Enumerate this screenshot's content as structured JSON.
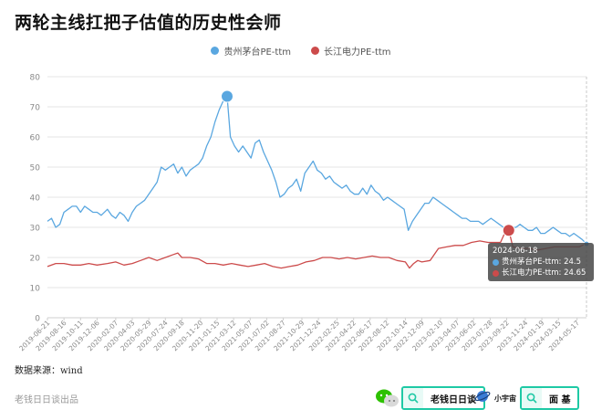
{
  "title": "两轮主线扛把子估值的历史性会师",
  "source": "数据来源：wind",
  "footer_left": "老钱日日谈出品",
  "footer_badges": {
    "wechat_search": "老钱日日谈",
    "app_name": "小宇宙",
    "app_search": "面 基"
  },
  "colors": {
    "moutai": "#5aa7e0",
    "cypc": "#cc4b4b",
    "grid": "#e6e6e6",
    "axis_text": "#8a8a8a"
  },
  "tooltip": {
    "date": "2024-06-18",
    "line1": "贵州茅台PE-ttm: 24.5",
    "line2": "长江电力PE-ttm: 24.65"
  },
  "chart_data": {
    "type": "line",
    "title": "两轮主线扛把子估值的历史性会师",
    "xlabel": "",
    "ylabel": "",
    "ylim": [
      0,
      80
    ],
    "yticks": [
      0,
      10,
      20,
      30,
      40,
      50,
      60,
      70,
      80
    ],
    "grid": true,
    "legend_position": "top-center",
    "x_tick_labels": [
      "2019-06-21",
      "2019-08-16",
      "2019-10-11",
      "2019-12-06",
      "2020-02-07",
      "2020-04-03",
      "2020-05-29",
      "2020-07-24",
      "2020-09-18",
      "2020-11-20",
      "2021-01-15",
      "2021-03-12",
      "2021-05-07",
      "2021-07-02",
      "2021-08-27",
      "2021-10-29",
      "2021-12-24",
      "2022-02-25",
      "2022-04-22",
      "2022-06-17",
      "2022-08-12",
      "2022-10-14",
      "2022-12-09",
      "2023-02-10",
      "2023-04-07",
      "2023-06-02",
      "2023-07-28",
      "2023-09-22",
      "2023-11-24",
      "2024-01-19",
      "2024-03-15",
      "2024-05-17"
    ],
    "series": [
      {
        "name": "贵州茅台PE-ttm",
        "color": "#5aa7e0",
        "points": [
          [
            "2019-06-21",
            32
          ],
          [
            "2019-07-05",
            33
          ],
          [
            "2019-07-19",
            30
          ],
          [
            "2019-08-02",
            31
          ],
          [
            "2019-08-16",
            35
          ],
          [
            "2019-08-30",
            36
          ],
          [
            "2019-09-13",
            37
          ],
          [
            "2019-09-27",
            37
          ],
          [
            "2019-10-11",
            35
          ],
          [
            "2019-10-25",
            37
          ],
          [
            "2019-11-08",
            36
          ],
          [
            "2019-11-22",
            35
          ],
          [
            "2019-12-06",
            35
          ],
          [
            "2019-12-20",
            34
          ],
          [
            "2020-01-10",
            36
          ],
          [
            "2020-01-24",
            34
          ],
          [
            "2020-02-07",
            33
          ],
          [
            "2020-02-21",
            35
          ],
          [
            "2020-03-06",
            34
          ],
          [
            "2020-03-20",
            32
          ],
          [
            "2020-04-03",
            35
          ],
          [
            "2020-04-17",
            37
          ],
          [
            "2020-05-01",
            38
          ],
          [
            "2020-05-15",
            39
          ],
          [
            "2020-05-29",
            41
          ],
          [
            "2020-06-12",
            43
          ],
          [
            "2020-06-26",
            45
          ],
          [
            "2020-07-10",
            50
          ],
          [
            "2020-07-24",
            49
          ],
          [
            "2020-08-07",
            50
          ],
          [
            "2020-08-21",
            51
          ],
          [
            "2020-09-04",
            48
          ],
          [
            "2020-09-18",
            50
          ],
          [
            "2020-10-02",
            47
          ],
          [
            "2020-10-16",
            49
          ],
          [
            "2020-10-30",
            50
          ],
          [
            "2020-11-13",
            51
          ],
          [
            "2020-11-27",
            53
          ],
          [
            "2020-12-11",
            57
          ],
          [
            "2020-12-25",
            60
          ],
          [
            "2021-01-08",
            65
          ],
          [
            "2021-01-22",
            69
          ],
          [
            "2021-02-05",
            72
          ],
          [
            "2021-02-18",
            73.5
          ],
          [
            "2021-03-01",
            60
          ],
          [
            "2021-03-15",
            57
          ],
          [
            "2021-03-29",
            55
          ],
          [
            "2021-04-12",
            57
          ],
          [
            "2021-04-26",
            55
          ],
          [
            "2021-05-10",
            53
          ],
          [
            "2021-05-24",
            58
          ],
          [
            "2021-06-07",
            59
          ],
          [
            "2021-06-21",
            55
          ],
          [
            "2021-07-05",
            52
          ],
          [
            "2021-07-19",
            49
          ],
          [
            "2021-08-02",
            45
          ],
          [
            "2021-08-16",
            40
          ],
          [
            "2021-08-30",
            41
          ],
          [
            "2021-09-13",
            43
          ],
          [
            "2021-09-27",
            44
          ],
          [
            "2021-10-11",
            46
          ],
          [
            "2021-10-25",
            42
          ],
          [
            "2021-11-08",
            48
          ],
          [
            "2021-11-22",
            50
          ],
          [
            "2021-12-06",
            52
          ],
          [
            "2021-12-20",
            49
          ],
          [
            "2022-01-03",
            48
          ],
          [
            "2022-01-17",
            46
          ],
          [
            "2022-01-31",
            47
          ],
          [
            "2022-02-14",
            45
          ],
          [
            "2022-02-28",
            44
          ],
          [
            "2022-03-14",
            43
          ],
          [
            "2022-03-28",
            44
          ],
          [
            "2022-04-11",
            42
          ],
          [
            "2022-04-25",
            41
          ],
          [
            "2022-05-09",
            41
          ],
          [
            "2022-05-23",
            43
          ],
          [
            "2022-06-06",
            41
          ],
          [
            "2022-06-20",
            44
          ],
          [
            "2022-07-04",
            42
          ],
          [
            "2022-07-18",
            41
          ],
          [
            "2022-08-01",
            39
          ],
          [
            "2022-08-15",
            40
          ],
          [
            "2022-08-29",
            39
          ],
          [
            "2022-09-12",
            38
          ],
          [
            "2022-09-26",
            37
          ],
          [
            "2022-10-10",
            36
          ],
          [
            "2022-10-24",
            29
          ],
          [
            "2022-11-07",
            32
          ],
          [
            "2022-11-21",
            34
          ],
          [
            "2022-12-05",
            36
          ],
          [
            "2022-12-19",
            38
          ],
          [
            "2023-01-02",
            38
          ],
          [
            "2023-01-16",
            40
          ],
          [
            "2023-01-30",
            39
          ],
          [
            "2023-02-13",
            38
          ],
          [
            "2023-02-27",
            37
          ],
          [
            "2023-03-13",
            36
          ],
          [
            "2023-03-27",
            35
          ],
          [
            "2023-04-10",
            34
          ],
          [
            "2023-04-24",
            33
          ],
          [
            "2023-05-08",
            33
          ],
          [
            "2023-05-22",
            32
          ],
          [
            "2023-06-05",
            32
          ],
          [
            "2023-06-19",
            32
          ],
          [
            "2023-07-03",
            31
          ],
          [
            "2023-07-17",
            32
          ],
          [
            "2023-07-31",
            33
          ],
          [
            "2023-08-14",
            32
          ],
          [
            "2023-08-28",
            31
          ],
          [
            "2023-09-11",
            30
          ],
          [
            "2023-09-25",
            29
          ],
          [
            "2023-10-09",
            30
          ],
          [
            "2023-10-23",
            30
          ],
          [
            "2023-11-06",
            31
          ],
          [
            "2023-11-20",
            30
          ],
          [
            "2023-12-04",
            29
          ],
          [
            "2023-12-18",
            29
          ],
          [
            "2024-01-01",
            30
          ],
          [
            "2024-01-15",
            28
          ],
          [
            "2024-01-29",
            28
          ],
          [
            "2024-02-12",
            29
          ],
          [
            "2024-02-26",
            30
          ],
          [
            "2024-03-11",
            29
          ],
          [
            "2024-03-25",
            28
          ],
          [
            "2024-04-08",
            28
          ],
          [
            "2024-04-22",
            27
          ],
          [
            "2024-05-06",
            28
          ],
          [
            "2024-05-20",
            27
          ],
          [
            "2024-06-03",
            26
          ],
          [
            "2024-06-18",
            24.5
          ]
        ]
      },
      {
        "name": "长江电力PE-ttm",
        "color": "#cc4b4b",
        "points": [
          [
            "2019-06-21",
            17
          ],
          [
            "2019-07-19",
            18
          ],
          [
            "2019-08-16",
            18
          ],
          [
            "2019-09-13",
            17.5
          ],
          [
            "2019-10-11",
            17.5
          ],
          [
            "2019-11-08",
            18
          ],
          [
            "2019-12-06",
            17.5
          ],
          [
            "2020-01-10",
            18
          ],
          [
            "2020-02-07",
            18.5
          ],
          [
            "2020-03-06",
            17.5
          ],
          [
            "2020-04-03",
            18
          ],
          [
            "2020-05-01",
            19
          ],
          [
            "2020-05-29",
            20
          ],
          [
            "2020-06-26",
            19
          ],
          [
            "2020-07-24",
            20
          ],
          [
            "2020-08-21",
            21
          ],
          [
            "2020-09-04",
            21.5
          ],
          [
            "2020-09-18",
            20
          ],
          [
            "2020-10-16",
            20
          ],
          [
            "2020-11-13",
            19.5
          ],
          [
            "2020-12-11",
            18
          ],
          [
            "2021-01-08",
            18
          ],
          [
            "2021-02-05",
            17.5
          ],
          [
            "2021-03-05",
            18
          ],
          [
            "2021-04-02",
            17.5
          ],
          [
            "2021-04-30",
            17
          ],
          [
            "2021-05-28",
            17.5
          ],
          [
            "2021-06-25",
            18
          ],
          [
            "2021-07-23",
            17
          ],
          [
            "2021-08-20",
            16.5
          ],
          [
            "2021-09-17",
            17
          ],
          [
            "2021-10-15",
            17.5
          ],
          [
            "2021-11-12",
            18.5
          ],
          [
            "2021-12-10",
            19
          ],
          [
            "2022-01-07",
            20
          ],
          [
            "2022-02-04",
            20
          ],
          [
            "2022-03-04",
            19.5
          ],
          [
            "2022-04-01",
            20
          ],
          [
            "2022-04-29",
            19.5
          ],
          [
            "2022-05-27",
            20
          ],
          [
            "2022-06-24",
            20.5
          ],
          [
            "2022-07-22",
            20
          ],
          [
            "2022-08-19",
            20
          ],
          [
            "2022-09-16",
            19
          ],
          [
            "2022-10-14",
            18.5
          ],
          [
            "2022-10-28",
            16.5
          ],
          [
            "2022-11-11",
            18
          ],
          [
            "2022-11-25",
            19
          ],
          [
            "2022-12-09",
            18.5
          ],
          [
            "2023-01-06",
            19
          ],
          [
            "2023-02-03",
            23
          ],
          [
            "2023-03-03",
            23.5
          ],
          [
            "2023-03-31",
            24
          ],
          [
            "2023-04-28",
            24
          ],
          [
            "2023-05-26",
            25
          ],
          [
            "2023-06-23",
            25.5
          ],
          [
            "2023-07-21",
            25
          ],
          [
            "2023-08-18",
            25
          ],
          [
            "2023-09-01",
            25
          ],
          [
            "2023-09-15",
            28
          ],
          [
            "2023-09-29",
            29
          ],
          [
            "2023-10-13",
            23.5
          ],
          [
            "2023-11-10",
            23
          ],
          [
            "2023-12-08",
            23
          ],
          [
            "2024-01-05",
            22.5
          ],
          [
            "2024-02-02",
            23
          ],
          [
            "2024-03-01",
            23.5
          ],
          [
            "2024-03-29",
            23.5
          ],
          [
            "2024-04-26",
            23.5
          ],
          [
            "2024-05-24",
            23.5
          ],
          [
            "2024-06-18",
            24.65
          ]
        ]
      }
    ],
    "highlights": [
      {
        "series": 0,
        "x": "2021-02-18",
        "y": 73.5
      },
      {
        "series": 0,
        "x": "2024-06-18",
        "y": 24.5
      },
      {
        "series": 1,
        "x": "2023-09-29",
        "y": 29
      }
    ]
  }
}
